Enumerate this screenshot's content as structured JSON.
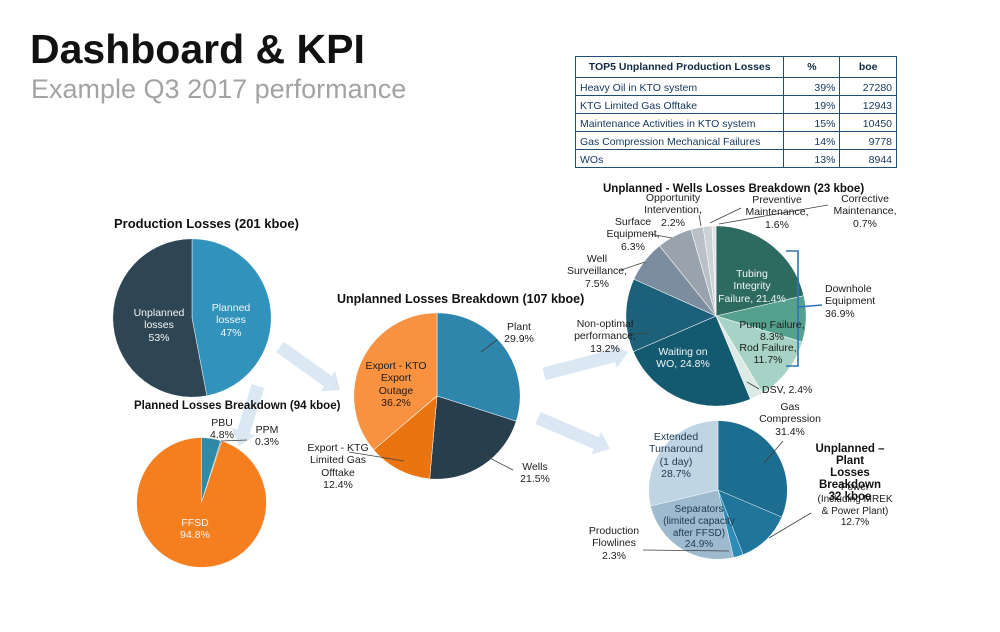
{
  "header": {
    "title": "Dashboard & KPI",
    "subtitle": "Example Q3 2017 performance"
  },
  "table": {
    "headers": [
      "TOP5 Unplanned Production Losses",
      "%",
      "boe"
    ],
    "rows": [
      {
        "name": "Heavy Oil in KTO system",
        "pct": "39%",
        "boe": "27280"
      },
      {
        "name": "KTG Limited Gas Offtake",
        "pct": "19%",
        "boe": "12943"
      },
      {
        "name": "Maintenance Activities in KTO system",
        "pct": "15%",
        "boe": "10450"
      },
      {
        "name": "Gas Compression Mechanical Failures",
        "pct": "14%",
        "boe": "9778"
      },
      {
        "name": "WOs",
        "pct": "13%",
        "boe": "8944"
      }
    ]
  },
  "colors": {
    "accent_arrow": "#D9E6F1",
    "bracket_blue": "#2E74B5",
    "leader_line": "#404040"
  },
  "chart_data": [
    {
      "id": "production_losses",
      "type": "pie",
      "title": "Production Losses (201 kboe)",
      "total": "201 kboe",
      "slices": [
        {
          "label": "Planned losses",
          "value": 47,
          "color": "#3193BC",
          "display": "Planned losses\n47%"
        },
        {
          "label": "Unplanned losses",
          "value": 53,
          "color": "#2E4553",
          "display": "Unplanned\nlosses\n53%"
        }
      ]
    },
    {
      "id": "planned_losses_breakdown",
      "type": "pie",
      "title": "Planned Losses Breakdown (94 kboe)",
      "total": "94 kboe",
      "slices": [
        {
          "label": "PBU",
          "value": 4.8,
          "color": "#2F8BA5",
          "display": "PBU\n4.8%"
        },
        {
          "label": "PPM",
          "value": 0.3,
          "color": "#8C8C8C",
          "display": "PPM\n0.3%"
        },
        {
          "label": "FFSD",
          "value": 94.8,
          "color": "#F57F1F",
          "display": "FFSD\n94.8%"
        }
      ]
    },
    {
      "id": "unplanned_losses_breakdown",
      "type": "pie",
      "title": "Unplanned Losses Breakdown (107 kboe)",
      "total": "107 kboe",
      "slices": [
        {
          "label": "Plant",
          "value": 29.9,
          "color": "#2E86AD",
          "display": "Plant\n29.9%"
        },
        {
          "label": "Wells",
          "value": 21.5,
          "color": "#273E4C",
          "display": "Wells\n21.5%"
        },
        {
          "label": "Export - KTG Limited Gas Offtake",
          "value": 12.4,
          "color": "#E97410",
          "display": "Export - KTG\nLimited Gas\nOfftake\n12.4%"
        },
        {
          "label": "Export - KTO Export Outage",
          "value": 36.2,
          "color": "#F89140",
          "display": "Export - KTO\nExport\nOutage\n36.2%"
        }
      ]
    },
    {
      "id": "unplanned_wells_losses_breakdown",
      "type": "pie",
      "title": "Unplanned - Wells Losses Breakdown (23 kboe)",
      "total": "23 kboe",
      "slices": [
        {
          "label": "Tubing Integrity Failure",
          "value": 21.4,
          "color": "#2D6A5F",
          "display": "Tubing\nIntegrity\nFailure, 21.4%"
        },
        {
          "label": "Pump Failure",
          "value": 8.3,
          "color": "#55A18D",
          "display": "Pump Failure,\n8.3%"
        },
        {
          "label": "Rod Failure",
          "value": 11.7,
          "color": "#A6D3C5",
          "display": "Rod Failure,\n11.7%"
        },
        {
          "label": "DSV",
          "value": 2.4,
          "color": "#DCEAE6",
          "display": "DSV, 2.4%"
        },
        {
          "label": "Waiting on WO",
          "value": 24.8,
          "color": "#13596F",
          "display": "Waiting on\nWO, 24.8%"
        },
        {
          "label": "Non-optimal performance",
          "value": 13.2,
          "color": "#1D6079",
          "display": "Non-optimal\nperformance,\n13.2%"
        },
        {
          "label": "Well Surveillance",
          "value": 7.5,
          "color": "#7D8DA0",
          "display": "Well\nSurveillance,\n7.5%"
        },
        {
          "label": "Surface Equipment",
          "value": 6.3,
          "color": "#99A3AD",
          "display": "Surface\nEquipment,\n6.3%"
        },
        {
          "label": "Opportunity Intervention",
          "value": 2.2,
          "color": "#B9C0C8",
          "display": "Opportunity\nIntervention,\n2.2%"
        },
        {
          "label": "Preventive Maintenance",
          "value": 1.6,
          "color": "#CDD2D7",
          "display": "Preventive\nMaintenance,\n1.6%"
        },
        {
          "label": "Corrective Maintenance",
          "value": 0.7,
          "color": "#E1E4E6",
          "display": "Corrective\nMaintenance,\n0.7%"
        }
      ],
      "annotation": {
        "label": "Downhole Equipment",
        "value": 36.9,
        "display": "Downhole\nEquipment\n36.9%"
      }
    },
    {
      "id": "unplanned_plant_losses_breakdown",
      "type": "pie",
      "title": "Unplanned – Plant Losses Breakdown 32 kboe",
      "title_display": "Unplanned – Plant\nLosses Breakdown\n32 kboe",
      "total": "32 kboe",
      "slices": [
        {
          "label": "Gas Compression",
          "value": 31.4,
          "color": "#1C6D90",
          "display": "Gas\nCompression\n31.4%"
        },
        {
          "label": "Power (Including MREK & Power Plant)",
          "value": 12.7,
          "color": "#20769A",
          "display": "Power\n(Including MREK\n& Power Plant)\n12.7%"
        },
        {
          "label": "Production Flowlines",
          "value": 2.3,
          "color": "#2B8CB5",
          "display": "Production\nFlowlines\n2.3%"
        },
        {
          "label": "Separators (limited capacity after FFSD)",
          "value": 24.9,
          "color": "#9EBACE",
          "display": "Separators\n(limited capacity\nafter FFSD)\n24.9%"
        },
        {
          "label": "Extended Turnaround (1 day)",
          "value": 28.7,
          "color": "#C0D5E4",
          "display": "Extended\nTurnaround\n(1 day)\n28.7%"
        }
      ]
    }
  ]
}
